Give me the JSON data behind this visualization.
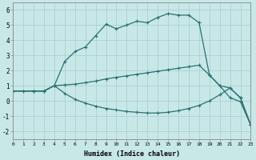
{
  "xlabel": "Humidex (Indice chaleur)",
  "background_color": "#c8e8e8",
  "line_color": "#2a7070",
  "grid_color": "#a8cccc",
  "xlim": [
    0,
    23
  ],
  "ylim": [
    -2.5,
    6.5
  ],
  "xticks": [
    0,
    1,
    2,
    3,
    4,
    5,
    6,
    7,
    8,
    9,
    10,
    11,
    12,
    13,
    14,
    15,
    16,
    17,
    18,
    19,
    20,
    21,
    22,
    23
  ],
  "yticks": [
    -2,
    -1,
    0,
    1,
    2,
    3,
    4,
    5,
    6
  ],
  "line1_x": [
    0,
    1,
    2,
    3,
    4,
    5,
    6,
    7,
    8,
    9,
    10,
    11,
    12,
    13,
    14,
    15,
    16,
    17,
    18,
    19,
    20,
    21,
    22,
    23
  ],
  "line1_y": [
    0.65,
    0.65,
    0.65,
    0.65,
    1.0,
    2.6,
    3.25,
    3.55,
    4.3,
    5.05,
    4.75,
    5.0,
    5.25,
    5.15,
    5.5,
    5.75,
    5.65,
    5.65,
    5.15,
    1.7,
    1.0,
    0.2,
    -0.05,
    -1.6
  ],
  "line2_x": [
    0,
    2,
    3,
    4,
    5,
    6,
    7,
    8,
    9,
    10,
    11,
    12,
    13,
    14,
    15,
    16,
    17,
    18,
    19,
    20,
    21,
    22,
    23
  ],
  "line2_y": [
    0.65,
    0.65,
    0.65,
    1.0,
    1.05,
    1.1,
    1.2,
    1.3,
    1.45,
    1.55,
    1.65,
    1.75,
    1.85,
    1.95,
    2.05,
    2.15,
    2.25,
    2.35,
    1.7,
    1.0,
    0.85,
    0.2,
    -1.6
  ],
  "line3_x": [
    0,
    2,
    3,
    4,
    5,
    6,
    7,
    8,
    9,
    10,
    11,
    12,
    13,
    14,
    15,
    16,
    17,
    18,
    19,
    20,
    21,
    22,
    23
  ],
  "line3_y": [
    0.65,
    0.65,
    0.65,
    1.0,
    0.5,
    0.1,
    -0.15,
    -0.35,
    -0.5,
    -0.6,
    -0.7,
    -0.75,
    -0.8,
    -0.8,
    -0.75,
    -0.65,
    -0.5,
    -0.3,
    0.0,
    0.4,
    0.85,
    0.2,
    -1.6
  ]
}
